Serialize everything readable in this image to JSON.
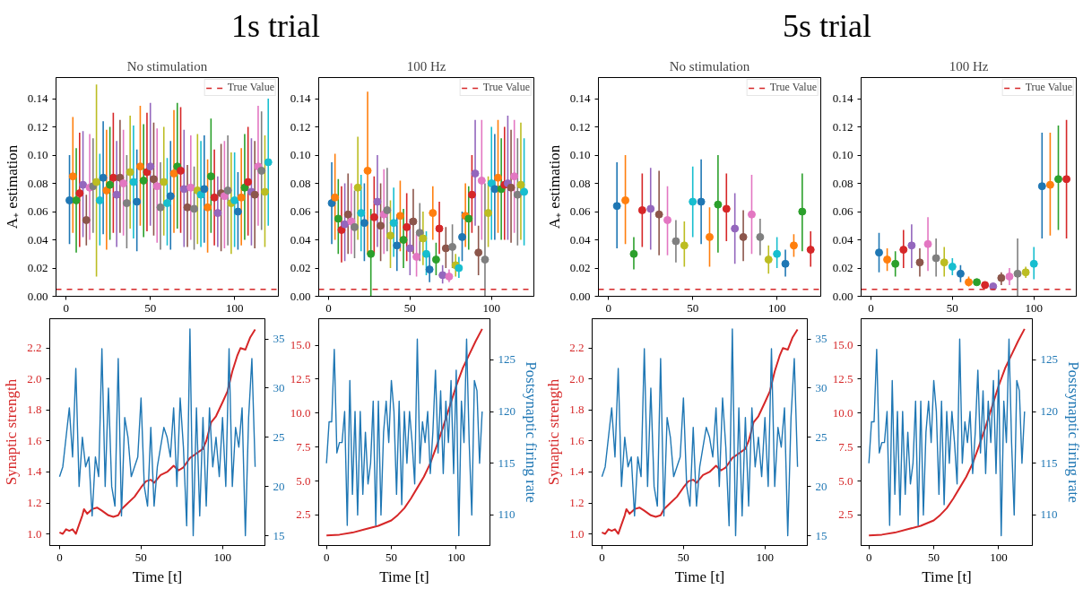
{
  "chart_data": [
    {
      "type": "scatter",
      "title": "No stimulation",
      "ylabel": "A₊ estimation",
      "annotations": [
        "1s trial"
      ],
      "marker": "circle",
      "grid": false,
      "legend": "top right",
      "xlim": [
        -6,
        126
      ],
      "xticks": [
        0,
        50,
        100
      ],
      "ylim": [
        0,
        0.155
      ],
      "yticks": [
        {
          "value": 0,
          "label": "0.00"
        },
        {
          "value": 0.02,
          "label": "0.02"
        },
        {
          "value": 0.04,
          "label": "0.04"
        },
        {
          "value": 0.06,
          "label": "0.06"
        },
        {
          "value": 0.08,
          "label": "0.08"
        },
        {
          "value": 0.1,
          "label": "0.10"
        },
        {
          "value": 0.12,
          "label": "0.12"
        },
        {
          "value": 0.14,
          "label": "0.14"
        }
      ],
      "ref_lines": [
        {
          "axis": "y",
          "value": 0.005,
          "label": "True Value",
          "color": "#d62728",
          "line_style": "dashed"
        }
      ],
      "x": [
        2,
        4,
        6,
        8,
        10,
        12,
        14,
        16,
        18,
        20,
        22,
        24,
        26,
        28,
        30,
        32,
        34,
        36,
        38,
        40,
        42,
        44,
        46,
        48,
        50,
        52,
        54,
        56,
        58,
        60,
        62,
        64,
        66,
        68,
        70,
        72,
        74,
        76,
        78,
        80,
        82,
        84,
        86,
        88,
        90,
        92,
        94,
        96,
        98,
        100,
        102,
        104,
        106,
        108,
        110,
        112,
        114,
        116,
        118,
        120
      ],
      "values": [
        0.068,
        0.085,
        0.068,
        0.073,
        0.079,
        0.054,
        0.077,
        0.078,
        0.081,
        0.068,
        0.084,
        0.075,
        0.079,
        0.084,
        0.072,
        0.084,
        0.08,
        0.066,
        0.088,
        0.081,
        0.067,
        0.092,
        0.082,
        0.088,
        0.092,
        0.083,
        0.078,
        0.063,
        0.081,
        0.066,
        0.071,
        0.087,
        0.092,
        0.089,
        0.076,
        0.063,
        0.077,
        0.062,
        0.075,
        0.072,
        0.076,
        0.063,
        0.085,
        0.07,
        0.059,
        0.073,
        0.071,
        0.075,
        0.066,
        0.068,
        0.06,
        0.07,
        0.077,
        0.081,
        0.074,
        0.072,
        0.092,
        0.089,
        0.074,
        0.095
      ],
      "errors": [
        [
          0.037,
          0.1
        ],
        [
          0.045,
          0.127
        ],
        [
          0.031,
          0.105
        ],
        [
          0.035,
          0.116
        ],
        [
          0.042,
          0.117
        ],
        [
          0.036,
          0.072
        ],
        [
          0.04,
          0.115
        ],
        [
          0.045,
          0.112
        ],
        [
          0.014,
          0.15
        ],
        [
          0.036,
          0.101
        ],
        [
          0.044,
          0.124
        ],
        [
          0.033,
          0.118
        ],
        [
          0.04,
          0.12
        ],
        [
          0.045,
          0.13
        ],
        [
          0.035,
          0.11
        ],
        [
          0.045,
          0.125
        ],
        [
          0.043,
          0.118
        ],
        [
          0.034,
          0.1
        ],
        [
          0.048,
          0.128
        ],
        [
          0.041,
          0.121
        ],
        [
          0.032,
          0.104
        ],
        [
          0.05,
          0.135
        ],
        [
          0.042,
          0.122
        ],
        [
          0.046,
          0.13
        ],
        [
          0.05,
          0.137
        ],
        [
          0.043,
          0.123
        ],
        [
          0.038,
          0.119
        ],
        [
          0.033,
          0.095
        ],
        [
          0.043,
          0.12
        ],
        [
          0.036,
          0.098
        ],
        [
          0.033,
          0.11
        ],
        [
          0.045,
          0.132
        ],
        [
          0.048,
          0.137
        ],
        [
          0.045,
          0.134
        ],
        [
          0.035,
          0.118
        ],
        [
          0.035,
          0.093
        ],
        [
          0.04,
          0.114
        ],
        [
          0.033,
          0.092
        ],
        [
          0.037,
          0.115
        ],
        [
          0.035,
          0.11
        ],
        [
          0.038,
          0.114
        ],
        [
          0.031,
          0.097
        ],
        [
          0.045,
          0.126
        ],
        [
          0.036,
          0.104
        ],
        [
          0.035,
          0.085
        ],
        [
          0.032,
          0.108
        ],
        [
          0.034,
          0.11
        ],
        [
          0.036,
          0.114
        ],
        [
          0.03,
          0.102
        ],
        [
          0.035,
          0.102
        ],
        [
          0.033,
          0.088
        ],
        [
          0.036,
          0.105
        ],
        [
          0.04,
          0.115
        ],
        [
          0.043,
          0.12
        ],
        [
          0.036,
          0.112
        ],
        [
          0.034,
          0.11
        ],
        [
          0.05,
          0.135
        ],
        [
          0.047,
          0.131
        ],
        [
          0.035,
          0.114
        ],
        [
          0.05,
          0.14
        ]
      ],
      "colors": [
        "#1f77b4",
        "#ff7f0e",
        "#2ca02c",
        "#d62728",
        "#9467bd",
        "#8c564b",
        "#e377c2",
        "#7f7f7f",
        "#bcbd22",
        "#17becf",
        "#1f77b4",
        "#ff7f0e",
        "#2ca02c",
        "#d62728",
        "#9467bd",
        "#8c564b",
        "#e377c2",
        "#7f7f7f",
        "#bcbd22",
        "#17becf",
        "#1f77b4",
        "#ff7f0e",
        "#2ca02c",
        "#d62728",
        "#9467bd",
        "#8c564b",
        "#e377c2",
        "#7f7f7f",
        "#bcbd22",
        "#17becf",
        "#1f77b4",
        "#ff7f0e",
        "#2ca02c",
        "#d62728",
        "#9467bd",
        "#8c564b",
        "#e377c2",
        "#7f7f7f",
        "#bcbd22",
        "#17becf",
        "#1f77b4",
        "#ff7f0e",
        "#2ca02c",
        "#d62728",
        "#9467bd",
        "#8c564b",
        "#e377c2",
        "#7f7f7f",
        "#bcbd22",
        "#17becf",
        "#1f77b4",
        "#ff7f0e",
        "#2ca02c",
        "#d62728",
        "#9467bd",
        "#8c564b",
        "#e377c2",
        "#7f7f7f",
        "#bcbd22",
        "#17becf"
      ]
    },
    {
      "type": "scatter",
      "title": "100 Hz",
      "marker": "circle",
      "grid": false,
      "legend": "top right",
      "xlim": [
        -6,
        126
      ],
      "xticks": [
        0,
        50,
        100
      ],
      "ylim": [
        0,
        0.155
      ],
      "yticks": [
        {
          "value": 0,
          "label": "0.00"
        },
        {
          "value": 0.02,
          "label": "0.02"
        },
        {
          "value": 0.04,
          "label": "0.04"
        },
        {
          "value": 0.06,
          "label": "0.06"
        },
        {
          "value": 0.08,
          "label": "0.08"
        },
        {
          "value": 0.1,
          "label": "0.10"
        },
        {
          "value": 0.12,
          "label": "0.12"
        },
        {
          "value": 0.14,
          "label": "0.14"
        }
      ],
      "ref_lines": [
        {
          "axis": "y",
          "value": 0.005,
          "label": "True Value",
          "color": "#d62728",
          "line_style": "dashed"
        }
      ],
      "x": [
        2,
        4,
        6,
        8,
        10,
        12,
        14,
        16,
        18,
        20,
        22,
        24,
        26,
        28,
        30,
        32,
        34,
        36,
        38,
        40,
        42,
        44,
        46,
        48,
        50,
        52,
        54,
        56,
        58,
        60,
        62,
        64,
        66,
        68,
        70,
        72,
        74,
        76,
        78,
        80,
        82,
        84,
        86,
        88,
        90,
        92,
        94,
        96,
        98,
        100,
        102,
        104,
        106,
        108,
        110,
        112,
        114,
        116,
        118,
        120
      ],
      "values": [
        0.066,
        0.07,
        0.055,
        0.047,
        0.051,
        0.058,
        0.053,
        0.049,
        0.077,
        0.059,
        0.052,
        0.089,
        0.03,
        0.056,
        0.067,
        0.05,
        0.058,
        0.061,
        0.043,
        0.052,
        0.036,
        0.057,
        0.04,
        0.049,
        0.034,
        0.053,
        0.028,
        0.045,
        0.041,
        0.03,
        0.019,
        0.059,
        0.026,
        0.048,
        0.015,
        0.034,
        0.014,
        0.035,
        0.022,
        0.02,
        0.042,
        0.057,
        0.055,
        0.072,
        0.087,
        0.031,
        0.082,
        0.026,
        0.059,
        0.08,
        0.076,
        0.084,
        0.076,
        0.079,
        0.08,
        0.077,
        0.085,
        0.072,
        0.079,
        0.074
      ],
      "errors": [
        [
          0.037,
          0.095
        ],
        [
          0.04,
          0.101
        ],
        [
          0.03,
          0.083
        ],
        [
          0.024,
          0.078
        ],
        [
          0.025,
          0.08
        ],
        [
          0.03,
          0.087
        ],
        [
          0.03,
          0.08
        ],
        [
          0.027,
          0.075
        ],
        [
          0.04,
          0.113
        ],
        [
          0.032,
          0.086
        ],
        [
          0.025,
          0.08
        ],
        [
          0.03,
          0.145
        ],
        [
          0.0,
          0.062
        ],
        [
          0.03,
          0.085
        ],
        [
          0.035,
          0.1
        ],
        [
          0.025,
          0.08
        ],
        [
          0.03,
          0.09
        ],
        [
          0.032,
          0.091
        ],
        [
          0.02,
          0.068
        ],
        [
          0.028,
          0.077
        ],
        [
          0.018,
          0.058
        ],
        [
          0.032,
          0.082
        ],
        [
          0.02,
          0.062
        ],
        [
          0.025,
          0.073
        ],
        [
          0.015,
          0.055
        ],
        [
          0.03,
          0.076
        ],
        [
          0.014,
          0.044
        ],
        [
          0.025,
          0.066
        ],
        [
          0.022,
          0.06
        ],
        [
          0.015,
          0.046
        ],
        [
          0.01,
          0.03
        ],
        [
          0.04,
          0.078
        ],
        [
          0.015,
          0.038
        ],
        [
          0.03,
          0.067
        ],
        [
          0.009,
          0.022
        ],
        [
          0.02,
          0.049
        ],
        [
          0.01,
          0.019
        ],
        [
          0.02,
          0.051
        ],
        [
          0.014,
          0.03
        ],
        [
          0.013,
          0.028
        ],
        [
          0.025,
          0.06
        ],
        [
          0.035,
          0.08
        ],
        [
          0.033,
          0.078
        ],
        [
          0.045,
          0.1
        ],
        [
          0.05,
          0.125
        ],
        [
          0.015,
          0.05
        ],
        [
          0.04,
          0.125
        ],
        [
          0.0,
          0.08
        ],
        [
          0.035,
          0.085
        ],
        [
          0.04,
          0.12
        ],
        [
          0.04,
          0.115
        ],
        [
          0.045,
          0.125
        ],
        [
          0.04,
          0.112
        ],
        [
          0.04,
          0.12
        ],
        [
          0.04,
          0.128
        ],
        [
          0.038,
          0.118
        ],
        [
          0.045,
          0.125
        ],
        [
          0.036,
          0.112
        ],
        [
          0.04,
          0.123
        ],
        [
          0.036,
          0.112
        ]
      ],
      "colors": [
        "#1f77b4",
        "#ff7f0e",
        "#2ca02c",
        "#d62728",
        "#9467bd",
        "#8c564b",
        "#e377c2",
        "#7f7f7f",
        "#bcbd22",
        "#17becf",
        "#1f77b4",
        "#ff7f0e",
        "#2ca02c",
        "#d62728",
        "#9467bd",
        "#8c564b",
        "#e377c2",
        "#7f7f7f",
        "#bcbd22",
        "#17becf",
        "#1f77b4",
        "#ff7f0e",
        "#2ca02c",
        "#d62728",
        "#9467bd",
        "#8c564b",
        "#e377c2",
        "#7f7f7f",
        "#bcbd22",
        "#17becf",
        "#1f77b4",
        "#ff7f0e",
        "#2ca02c",
        "#d62728",
        "#9467bd",
        "#8c564b",
        "#e377c2",
        "#7f7f7f",
        "#bcbd22",
        "#17becf",
        "#1f77b4",
        "#ff7f0e",
        "#2ca02c",
        "#d62728",
        "#9467bd",
        "#8c564b",
        "#e377c2",
        "#7f7f7f",
        "#bcbd22",
        "#17becf",
        "#1f77b4",
        "#ff7f0e",
        "#2ca02c",
        "#d62728",
        "#9467bd",
        "#8c564b",
        "#e377c2",
        "#7f7f7f",
        "#bcbd22",
        "#17becf"
      ]
    },
    {
      "type": "scatter",
      "title": "No stimulation",
      "ylabel": "A₊ estimation",
      "annotations": [
        "5s trial"
      ],
      "marker": "circle",
      "grid": false,
      "legend": "top right",
      "xlim": [
        -6,
        126
      ],
      "xticks": [
        0,
        50,
        100
      ],
      "ylim": [
        0,
        0.155
      ],
      "yticks": [
        {
          "value": 0,
          "label": "0.00"
        },
        {
          "value": 0.02,
          "label": "0.02"
        },
        {
          "value": 0.04,
          "label": "0.04"
        },
        {
          "value": 0.06,
          "label": "0.06"
        },
        {
          "value": 0.08,
          "label": "0.08"
        },
        {
          "value": 0.1,
          "label": "0.10"
        },
        {
          "value": 0.12,
          "label": "0.12"
        },
        {
          "value": 0.14,
          "label": "0.14"
        }
      ],
      "ref_lines": [
        {
          "axis": "y",
          "value": 0.005,
          "label": "True Value",
          "color": "#d62728",
          "line_style": "dashed"
        }
      ],
      "x": [
        5,
        10,
        15,
        20,
        25,
        30,
        35,
        40,
        45,
        50,
        55,
        60,
        65,
        70,
        75,
        80,
        85,
        90,
        95,
        100,
        105,
        110,
        115,
        120
      ],
      "values": [
        0.064,
        0.068,
        0.03,
        0.061,
        0.062,
        0.058,
        0.054,
        0.039,
        0.036,
        0.067,
        0.067,
        0.042,
        0.065,
        0.062,
        0.048,
        0.042,
        0.058,
        0.042,
        0.026,
        0.03,
        0.023,
        0.036,
        0.06,
        0.033
      ],
      "errors": [
        [
          0.034,
          0.095
        ],
        [
          0.037,
          0.1
        ],
        [
          0.019,
          0.042
        ],
        [
          0.035,
          0.087
        ],
        [
          0.033,
          0.091
        ],
        [
          0.029,
          0.089
        ],
        [
          0.029,
          0.078
        ],
        [
          0.024,
          0.054
        ],
        [
          0.021,
          0.053
        ],
        [
          0.042,
          0.092
        ],
        [
          0.037,
          0.097
        ],
        [
          0.021,
          0.063
        ],
        [
          0.031,
          0.1
        ],
        [
          0.039,
          0.087
        ],
        [
          0.023,
          0.073
        ],
        [
          0.025,
          0.061
        ],
        [
          0.03,
          0.086
        ],
        [
          0.029,
          0.055
        ],
        [
          0.016,
          0.036
        ],
        [
          0.02,
          0.042
        ],
        [
          0.014,
          0.033
        ],
        [
          0.028,
          0.044
        ],
        [
          0.032,
          0.087
        ],
        [
          0.021,
          0.046
        ]
      ],
      "colors": [
        "#1f77b4",
        "#ff7f0e",
        "#2ca02c",
        "#d62728",
        "#9467bd",
        "#8c564b",
        "#e377c2",
        "#7f7f7f",
        "#bcbd22",
        "#17becf",
        "#1f77b4",
        "#ff7f0e",
        "#2ca02c",
        "#d62728",
        "#9467bd",
        "#8c564b",
        "#e377c2",
        "#7f7f7f",
        "#bcbd22",
        "#17becf",
        "#1f77b4",
        "#ff7f0e",
        "#2ca02c",
        "#d62728"
      ]
    },
    {
      "type": "scatter",
      "title": "100 Hz",
      "marker": "circle",
      "grid": false,
      "legend": "top right",
      "xlim": [
        -6,
        126
      ],
      "xticks": [
        0,
        50,
        100
      ],
      "ylim": [
        0,
        0.155
      ],
      "yticks": [
        {
          "value": 0,
          "label": "0.00"
        },
        {
          "value": 0.02,
          "label": "0.02"
        },
        {
          "value": 0.04,
          "label": "0.04"
        },
        {
          "value": 0.06,
          "label": "0.06"
        },
        {
          "value": 0.08,
          "label": "0.08"
        },
        {
          "value": 0.1,
          "label": "0.10"
        },
        {
          "value": 0.12,
          "label": "0.12"
        },
        {
          "value": 0.14,
          "label": "0.14"
        }
      ],
      "ref_lines": [
        {
          "axis": "y",
          "value": 0.005,
          "label": "True Value",
          "color": "#d62728",
          "line_style": "dashed"
        }
      ],
      "x": [
        5,
        10,
        15,
        20,
        25,
        30,
        35,
        40,
        45,
        50,
        55,
        60,
        65,
        70,
        75,
        80,
        85,
        90,
        95,
        100,
        105,
        110,
        115,
        120
      ],
      "values": [
        0.031,
        0.026,
        0.023,
        0.033,
        0.036,
        0.024,
        0.037,
        0.027,
        0.024,
        0.021,
        0.016,
        0.01,
        0.01,
        0.008,
        0.007,
        0.013,
        0.014,
        0.016,
        0.017,
        0.023,
        0.078,
        0.079,
        0.083,
        0.083
      ],
      "errors": [
        [
          0.017,
          0.045
        ],
        [
          0.018,
          0.034
        ],
        [
          0.014,
          0.032
        ],
        [
          0.02,
          0.047
        ],
        [
          0.02,
          0.051
        ],
        [
          0.014,
          0.034
        ],
        [
          0.018,
          0.056
        ],
        [
          0.014,
          0.041
        ],
        [
          0.014,
          0.035
        ],
        [
          0.015,
          0.027
        ],
        [
          0.01,
          0.022
        ],
        [
          0.007,
          0.014
        ],
        [
          0.008,
          0.011
        ],
        [
          0.006,
          0.009
        ],
        [
          0.006,
          0.008
        ],
        [
          0.008,
          0.017
        ],
        [
          0.008,
          0.02
        ],
        [
          0.0,
          0.041
        ],
        [
          0.013,
          0.021
        ],
        [
          0.012,
          0.035
        ],
        [
          0.041,
          0.116
        ],
        [
          0.043,
          0.116
        ],
        [
          0.047,
          0.121
        ],
        [
          0.041,
          0.125
        ]
      ],
      "colors": [
        "#1f77b4",
        "#ff7f0e",
        "#2ca02c",
        "#d62728",
        "#9467bd",
        "#8c564b",
        "#e377c2",
        "#7f7f7f",
        "#bcbd22",
        "#17becf",
        "#1f77b4",
        "#ff7f0e",
        "#2ca02c",
        "#d62728",
        "#9467bd",
        "#8c564b",
        "#e377c2",
        "#7f7f7f",
        "#bcbd22",
        "#17becf",
        "#1f77b4",
        "#ff7f0e",
        "#2ca02c",
        "#d62728"
      ]
    },
    {
      "type": "line",
      "xlabel": "Time [t]",
      "ylabel": "Synaptic strength",
      "grid": false,
      "xlim": [
        -6,
        126
      ],
      "xticks": [
        0,
        50,
        100
      ],
      "ylim": [
        0.925,
        2.39
      ],
      "yticks": [
        {
          "value": 1,
          "label": "1.0"
        },
        1.2,
        1.4,
        1.6,
        1.8,
        {
          "value": 2,
          "label": "2.0"
        },
        2.2
      ],
      "y2lim": [
        14.0,
        37.05
      ],
      "y2ticks": [
        15,
        20,
        25,
        30,
        35
      ],
      "series": [
        {
          "color": "#d62728",
          "x": [
            0,
            2,
            4,
            6,
            8,
            10,
            12,
            14,
            15,
            17,
            20,
            23,
            26,
            30,
            33,
            36,
            38,
            42,
            46,
            50,
            53,
            56,
            58,
            62,
            66,
            70,
            73,
            76,
            80,
            84,
            88,
            90,
            93,
            96,
            100,
            103,
            106,
            109,
            111,
            114,
            117,
            120
          ],
          "values": [
            1.01,
            1.0,
            1.03,
            1.02,
            1.03,
            1.0,
            1.06,
            1.12,
            1.16,
            1.13,
            1.16,
            1.17,
            1.15,
            1.12,
            1.11,
            1.12,
            1.16,
            1.2,
            1.24,
            1.3,
            1.34,
            1.35,
            1.33,
            1.38,
            1.4,
            1.44,
            1.41,
            1.43,
            1.49,
            1.52,
            1.55,
            1.6,
            1.72,
            1.76,
            1.85,
            1.92,
            2.05,
            2.15,
            2.2,
            2.19,
            2.27,
            2.32
          ]
        },
        {
          "color": "#1f77b4",
          "axis": "y2",
          "x": [
            0,
            2,
            4,
            6,
            8,
            10,
            12,
            14,
            16,
            18,
            20,
            22,
            24,
            26,
            28,
            30,
            32,
            34,
            36,
            38,
            40,
            42,
            44,
            46,
            48,
            50,
            52,
            54,
            56,
            58,
            60,
            62,
            64,
            66,
            68,
            70,
            72,
            74,
            76,
            78,
            80,
            82,
            84,
            86,
            88,
            90,
            92,
            94,
            96,
            98,
            100,
            102,
            104,
            106,
            108,
            110,
            112,
            114,
            116,
            118,
            120
          ],
          "values": [
            21,
            22,
            25,
            28,
            23,
            32,
            20,
            25,
            22,
            23,
            17,
            23,
            21,
            34,
            20,
            30,
            20,
            18,
            33,
            17,
            27,
            25,
            21,
            22,
            23,
            29,
            20,
            18,
            26,
            18,
            22,
            24,
            26,
            25,
            23,
            28,
            20,
            29,
            24,
            16,
            36,
            15,
            28,
            17,
            27,
            18,
            28,
            22,
            25,
            21,
            27,
            20,
            34,
            20,
            26,
            24,
            28,
            15,
            27,
            33,
            22
          ]
        }
      ]
    },
    {
      "type": "line",
      "xlabel": "Time [t]",
      "y2label": "Postsynaptic firing rate",
      "grid": false,
      "xlim": [
        -6,
        126
      ],
      "xticks": [
        0,
        50,
        100
      ],
      "ylim": [
        0.25,
        16.95
      ],
      "yticks": [
        2.5,
        {
          "value": 5,
          "label": "5.0"
        },
        7.5,
        {
          "value": 10,
          "label": "10.0"
        },
        12.5,
        {
          "value": 15,
          "label": "15.0"
        }
      ],
      "y2lim": [
        107.05,
        128.97
      ],
      "y2ticks": [
        110,
        115,
        120,
        125
      ],
      "series": [
        {
          "color": "#d62728",
          "x": [
            0,
            10,
            20,
            30,
            40,
            50,
            55,
            60,
            65,
            70,
            75,
            80,
            85,
            90,
            95,
            100,
            105,
            110,
            115,
            120
          ],
          "values": [
            1.0,
            1.05,
            1.2,
            1.45,
            1.7,
            2.1,
            2.5,
            3.0,
            3.7,
            4.5,
            5.3,
            6.3,
            7.6,
            9.0,
            10.5,
            12.0,
            13.3,
            14.3,
            15.3,
            16.2
          ]
        },
        {
          "color": "#1f77b4",
          "axis": "y2",
          "x": [
            0,
            2,
            4,
            6,
            8,
            10,
            12,
            14,
            16,
            18,
            20,
            22,
            24,
            26,
            28,
            30,
            32,
            34,
            36,
            38,
            40,
            42,
            44,
            46,
            48,
            50,
            52,
            54,
            56,
            58,
            60,
            62,
            64,
            66,
            68,
            70,
            72,
            74,
            76,
            78,
            80,
            82,
            84,
            86,
            88,
            90,
            92,
            94,
            96,
            98,
            100,
            102,
            104,
            106,
            108,
            110,
            112,
            114,
            116,
            118,
            120
          ],
          "values": [
            115,
            119,
            119,
            126,
            116,
            117,
            117,
            120,
            109,
            123,
            112,
            120,
            110,
            120,
            112,
            118,
            113,
            115,
            121,
            109,
            121,
            110,
            118,
            121,
            117,
            123,
            120,
            112,
            121,
            111,
            120,
            115,
            120,
            117,
            113,
            127,
            115,
            119,
            117,
            120,
            114,
            118,
            124,
            116,
            122,
            114,
            121,
            117,
            123,
            114,
            124,
            108,
            121,
            117,
            127,
            117,
            110,
            123,
            122,
            115,
            120
          ]
        }
      ]
    },
    {
      "type": "line",
      "xlabel": "Time [t]",
      "ylabel": "Synaptic strength",
      "grid": false,
      "xlim": [
        -6,
        126
      ],
      "xticks": [
        0,
        50,
        100
      ],
      "ylim": [
        0.925,
        2.39
      ],
      "yticks": [
        {
          "value": 1,
          "label": "1.0"
        },
        1.2,
        1.4,
        1.6,
        1.8,
        {
          "value": 2,
          "label": "2.0"
        },
        2.2
      ],
      "y2lim": [
        14.0,
        37.05
      ],
      "y2ticks": [
        15,
        20,
        25,
        30,
        35
      ],
      "series": [
        {
          "color": "#d62728",
          "x": [
            0,
            2,
            4,
            6,
            8,
            10,
            12,
            14,
            15,
            17,
            20,
            23,
            26,
            30,
            33,
            36,
            38,
            42,
            46,
            50,
            53,
            56,
            58,
            62,
            66,
            70,
            73,
            76,
            80,
            84,
            88,
            90,
            93,
            96,
            100,
            103,
            106,
            109,
            111,
            114,
            117,
            120
          ],
          "values": [
            1.01,
            1.0,
            1.03,
            1.02,
            1.03,
            1.0,
            1.06,
            1.12,
            1.16,
            1.13,
            1.16,
            1.17,
            1.15,
            1.12,
            1.11,
            1.12,
            1.16,
            1.2,
            1.24,
            1.3,
            1.34,
            1.35,
            1.33,
            1.38,
            1.4,
            1.44,
            1.41,
            1.43,
            1.49,
            1.52,
            1.55,
            1.6,
            1.72,
            1.76,
            1.85,
            1.92,
            2.05,
            2.15,
            2.2,
            2.19,
            2.27,
            2.32
          ]
        },
        {
          "color": "#1f77b4",
          "axis": "y2",
          "x": [
            0,
            2,
            4,
            6,
            8,
            10,
            12,
            14,
            16,
            18,
            20,
            22,
            24,
            26,
            28,
            30,
            32,
            34,
            36,
            38,
            40,
            42,
            44,
            46,
            48,
            50,
            52,
            54,
            56,
            58,
            60,
            62,
            64,
            66,
            68,
            70,
            72,
            74,
            76,
            78,
            80,
            82,
            84,
            86,
            88,
            90,
            92,
            94,
            96,
            98,
            100,
            102,
            104,
            106,
            108,
            110,
            112,
            114,
            116,
            118,
            120
          ],
          "values": [
            21,
            22,
            25,
            28,
            23,
            32,
            20,
            25,
            22,
            23,
            17,
            23,
            21,
            34,
            20,
            30,
            20,
            18,
            33,
            17,
            27,
            25,
            21,
            22,
            23,
            29,
            20,
            18,
            26,
            18,
            22,
            24,
            26,
            25,
            23,
            28,
            20,
            29,
            24,
            16,
            36,
            15,
            28,
            17,
            27,
            18,
            28,
            22,
            25,
            21,
            27,
            20,
            34,
            20,
            26,
            24,
            28,
            15,
            27,
            33,
            22
          ]
        }
      ]
    },
    {
      "type": "line",
      "xlabel": "Time [t]",
      "y2label": "Postsynaptic firing rate",
      "grid": false,
      "xlim": [
        -6,
        126
      ],
      "xticks": [
        0,
        50,
        100
      ],
      "ylim": [
        0.25,
        16.95
      ],
      "yticks": [
        2.5,
        {
          "value": 5,
          "label": "5.0"
        },
        7.5,
        {
          "value": 10,
          "label": "10.0"
        },
        12.5,
        {
          "value": 15,
          "label": "15.0"
        }
      ],
      "y2lim": [
        107.05,
        128.97
      ],
      "y2ticks": [
        110,
        115,
        120,
        125
      ],
      "series": [
        {
          "color": "#d62728",
          "x": [
            0,
            10,
            20,
            30,
            40,
            50,
            55,
            60,
            65,
            70,
            75,
            80,
            85,
            90,
            95,
            100,
            105,
            110,
            115,
            120
          ],
          "values": [
            1.0,
            1.05,
            1.2,
            1.45,
            1.7,
            2.1,
            2.5,
            3.0,
            3.7,
            4.5,
            5.3,
            6.3,
            7.6,
            9.0,
            10.5,
            12.0,
            13.3,
            14.3,
            15.3,
            16.2
          ]
        },
        {
          "color": "#1f77b4",
          "axis": "y2",
          "x": [
            0,
            2,
            4,
            6,
            8,
            10,
            12,
            14,
            16,
            18,
            20,
            22,
            24,
            26,
            28,
            30,
            32,
            34,
            36,
            38,
            40,
            42,
            44,
            46,
            48,
            50,
            52,
            54,
            56,
            58,
            60,
            62,
            64,
            66,
            68,
            70,
            72,
            74,
            76,
            78,
            80,
            82,
            84,
            86,
            88,
            90,
            92,
            94,
            96,
            98,
            100,
            102,
            104,
            106,
            108,
            110,
            112,
            114,
            116,
            118,
            120
          ],
          "values": [
            115,
            119,
            119,
            126,
            116,
            117,
            117,
            120,
            109,
            123,
            112,
            120,
            110,
            120,
            112,
            118,
            113,
            115,
            121,
            109,
            121,
            110,
            118,
            121,
            117,
            123,
            120,
            112,
            121,
            111,
            120,
            115,
            120,
            117,
            113,
            127,
            115,
            119,
            117,
            120,
            114,
            118,
            124,
            116,
            122,
            114,
            121,
            117,
            123,
            114,
            124,
            108,
            121,
            117,
            127,
            117,
            110,
            123,
            122,
            115,
            120
          ]
        }
      ]
    }
  ]
}
